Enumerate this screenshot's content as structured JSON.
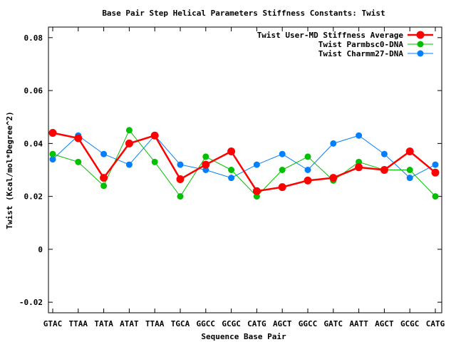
{
  "chart_data": {
    "type": "line",
    "title": "Base Pair Step Helical Parameters Stiffness Constants: Twist",
    "xlabel": "Sequence Base Pair",
    "ylabel": "Twist (Kcal/mol*Degree^2)",
    "ylim": [
      -0.024,
      0.084
    ],
    "yticks": [
      -0.02,
      0,
      0.02,
      0.04,
      0.06,
      0.08
    ],
    "ytick_labels": [
      "-0.02",
      "0",
      "0.02",
      "0.04",
      "0.06",
      "0.08"
    ],
    "grid": false,
    "legend_position": "top-right",
    "categories": [
      "GTAC",
      "TTAA",
      "TATA",
      "ATAT",
      "TTAA",
      "TGCA",
      "GGCC",
      "GCGC",
      "CATG",
      "AGCT",
      "GGCC",
      "GATC",
      "AATT",
      "AGCT",
      "GCGC",
      "CATG"
    ],
    "series": [
      {
        "name": "Twist User-MD Stiffness Average",
        "color": "#ff0000",
        "values": [
          0.044,
          0.042,
          0.027,
          0.04,
          0.043,
          0.0265,
          0.032,
          0.037,
          0.022,
          0.0235,
          0.026,
          0.027,
          0.031,
          0.03,
          0.037,
          0.029
        ]
      },
      {
        "name": "Twist Parmbsc0-DNA",
        "color": "#00c000",
        "values": [
          0.036,
          0.033,
          0.024,
          0.045,
          0.033,
          0.02,
          0.035,
          0.03,
          0.02,
          0.03,
          0.035,
          0.026,
          0.033,
          0.03,
          0.03,
          0.02
        ]
      },
      {
        "name": "Twist Charmm27-DNA",
        "color": "#0080ff",
        "values": [
          0.034,
          0.043,
          0.036,
          0.032,
          0.043,
          0.032,
          0.03,
          0.027,
          0.032,
          0.036,
          0.03,
          0.04,
          0.043,
          0.036,
          0.027,
          0.032
        ]
      }
    ]
  }
}
